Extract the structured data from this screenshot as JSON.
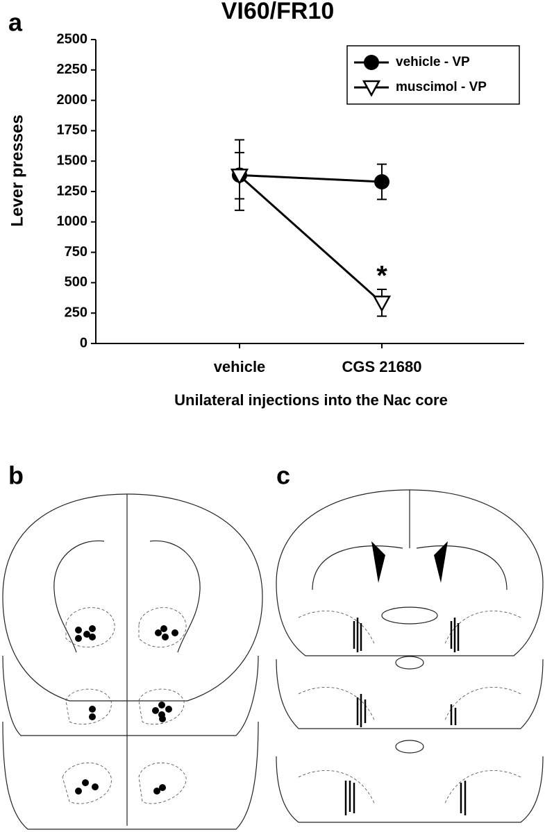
{
  "panel_labels": [
    "a",
    "b",
    "c"
  ],
  "chart_data": {
    "type": "line",
    "title": "VI60/FR10",
    "x_label": "Unilateral injections into the Nac core",
    "y_label": "Lever presses",
    "categories": [
      "vehicle",
      "CGS 21680"
    ],
    "series": [
      {
        "name": "vehicle - VP",
        "color": "#000000",
        "marker": "circle",
        "values": [
          1385,
          1330
        ],
        "errors": [
          290,
          145
        ]
      },
      {
        "name": "muscimol - VP",
        "color": "#000000",
        "marker": "triangle-down",
        "values": [
          1380,
          335
        ],
        "errors": [
          190,
          110
        ]
      }
    ],
    "annotations": [
      {
        "text": "*",
        "category": 1,
        "value": 600
      }
    ],
    "ylim": [
      0,
      2500
    ],
    "yticks": [
      0,
      250,
      500,
      750,
      1000,
      1250,
      1500,
      1750,
      2000,
      2250,
      2500
    ],
    "grid": false,
    "legend": "top-right"
  }
}
